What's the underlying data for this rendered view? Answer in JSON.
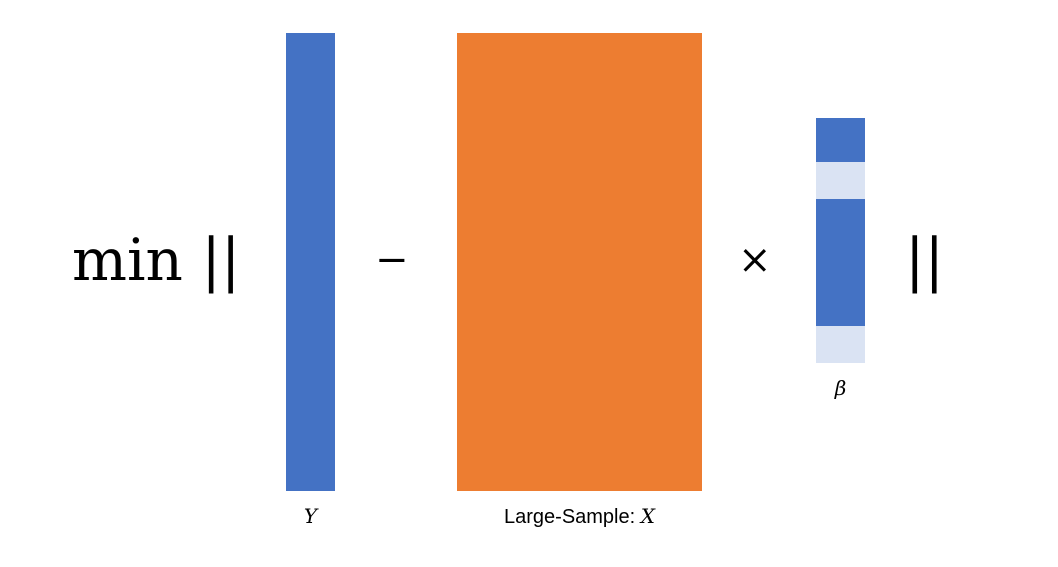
{
  "equation": {
    "prefix": "min ||",
    "suffix": "||",
    "minus_symbol": "−",
    "times_symbol": "×"
  },
  "blocks": {
    "y": {
      "label": "Y",
      "color": "#4472C4"
    },
    "x": {
      "label_text": "Large-Sample: ",
      "label_symbol": "X",
      "color": "#ED7D31"
    },
    "beta": {
      "label": "β",
      "segments": [
        {
          "shade": "dark",
          "color": "#4472C4",
          "fraction": 0.18
        },
        {
          "shade": "light",
          "color": "#DAE3F3",
          "fraction": 0.15
        },
        {
          "shade": "dark",
          "color": "#4472C4",
          "fraction": 0.52
        },
        {
          "shade": "light",
          "color": "#DAE3F3",
          "fraction": 0.15
        }
      ]
    }
  }
}
